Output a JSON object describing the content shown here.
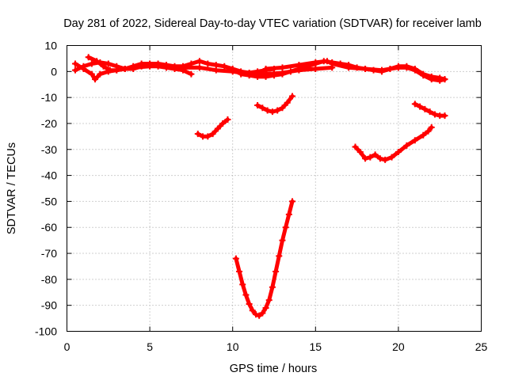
{
  "chart_data": {
    "type": "scatter",
    "title": "Day 281 of 2022, Sidereal Day-to-day VTEC variation (SDTVAR) for receiver lamb",
    "xlabel": "GPS time / hours",
    "ylabel": "SDTVAR / TECUs",
    "xlim": [
      0,
      25
    ],
    "ylim": [
      -100,
      10
    ],
    "xticks": [
      0,
      5,
      10,
      15,
      20,
      25
    ],
    "yticks": [
      10,
      0,
      -10,
      -20,
      -30,
      -40,
      -50,
      -60,
      -70,
      -80,
      -90,
      -100
    ],
    "xtick_labels": [
      "0",
      "5",
      "10",
      "15",
      "20",
      "25"
    ],
    "ytick_labels": [
      "10",
      "0",
      "-10",
      "-20",
      "-30",
      "-40",
      "-50",
      "-60",
      "-70",
      "-80",
      "-90",
      "-100"
    ],
    "grid": true,
    "legend": "none",
    "marker": "+",
    "color": "#ff0000",
    "series": [
      {
        "name": "trace-1",
        "points": [
          [
            1.3,
            5.5
          ],
          [
            1.8,
            4
          ],
          [
            2.2,
            2
          ],
          [
            2.6,
            0.5
          ],
          [
            3.0,
            0.5
          ],
          [
            3.5,
            1
          ],
          [
            4.0,
            2
          ],
          [
            4.5,
            3
          ],
          [
            5.0,
            3
          ],
          [
            5.5,
            2
          ],
          [
            6.0,
            1.5
          ],
          [
            6.5,
            1
          ],
          [
            7.0,
            0.5
          ],
          [
            7.5,
            -1
          ]
        ]
      },
      {
        "name": "trace-2",
        "points": [
          [
            0.5,
            0.5
          ],
          [
            1.0,
            2
          ],
          [
            1.5,
            3
          ],
          [
            2.0,
            3.5
          ],
          [
            2.5,
            3
          ],
          [
            3.0,
            2
          ],
          [
            3.5,
            1
          ],
          [
            4.0,
            1
          ],
          [
            4.5,
            2
          ],
          [
            5.0,
            3
          ],
          [
            5.5,
            3
          ],
          [
            6.0,
            2.5
          ],
          [
            6.5,
            2
          ],
          [
            7.0,
            2
          ],
          [
            7.5,
            3
          ],
          [
            8.0,
            4
          ],
          [
            8.5,
            3
          ],
          [
            9.0,
            2.5
          ],
          [
            9.5,
            2
          ],
          [
            10.0,
            1
          ],
          [
            10.5,
            0
          ],
          [
            11.0,
            -0.5
          ],
          [
            11.5,
            0
          ],
          [
            12.0,
            0.5
          ],
          [
            12.5,
            1
          ]
        ]
      },
      {
        "name": "trace-3",
        "points": [
          [
            0.5,
            3
          ],
          [
            1.0,
            1
          ],
          [
            1.5,
            -1
          ],
          [
            1.7,
            -3
          ],
          [
            2.0,
            -1
          ],
          [
            2.5,
            0
          ],
          [
            3.0,
            0.5
          ],
          [
            3.5,
            1
          ],
          [
            4.0,
            1.5
          ],
          [
            5.0,
            2
          ],
          [
            6.0,
            2
          ],
          [
            7.0,
            1.5
          ],
          [
            8.0,
            1.5
          ],
          [
            9.0,
            0.5
          ],
          [
            10.0,
            0
          ],
          [
            11.0,
            -1
          ],
          [
            12.0,
            -1
          ],
          [
            13.0,
            -0.5
          ],
          [
            14.0,
            0.5
          ],
          [
            15.0,
            1
          ],
          [
            16.0,
            1.5
          ]
        ]
      },
      {
        "name": "trace-4",
        "points": [
          [
            10.5,
            -1
          ],
          [
            11.0,
            -1.5
          ],
          [
            11.5,
            -2
          ],
          [
            12.0,
            -2
          ],
          [
            12.5,
            -1.5
          ],
          [
            13.0,
            -1
          ],
          [
            13.5,
            0
          ],
          [
            14.0,
            1
          ],
          [
            14.5,
            2
          ],
          [
            15.0,
            3
          ],
          [
            15.5,
            4
          ],
          [
            16.0,
            3.5
          ],
          [
            16.5,
            3
          ],
          [
            17.0,
            2.5
          ],
          [
            17.5,
            1.5
          ],
          [
            18.0,
            1
          ],
          [
            18.5,
            0.5
          ],
          [
            19.0,
            0
          ],
          [
            19.5,
            1
          ],
          [
            20.0,
            2
          ],
          [
            20.5,
            2
          ],
          [
            21.0,
            1
          ],
          [
            21.5,
            -1
          ],
          [
            22.0,
            -2
          ],
          [
            22.5,
            -2.5
          ],
          [
            22.8,
            -3
          ]
        ]
      },
      {
        "name": "trace-5",
        "points": [
          [
            12.0,
            1
          ],
          [
            13.0,
            1.5
          ],
          [
            14.0,
            2.5
          ],
          [
            15.0,
            3.5
          ],
          [
            15.7,
            4
          ],
          [
            16.0,
            3
          ],
          [
            17.0,
            1.5
          ],
          [
            18.0,
            1
          ],
          [
            19.0,
            0.5
          ],
          [
            19.5,
            1
          ],
          [
            20.0,
            1.5
          ],
          [
            20.5,
            1.5
          ],
          [
            21.0,
            0.5
          ],
          [
            21.5,
            -1.5
          ],
          [
            22.0,
            -3
          ],
          [
            22.5,
            -3.5
          ],
          [
            22.8,
            -3
          ]
        ]
      },
      {
        "name": "trace-6",
        "points": [
          [
            7.9,
            -24
          ],
          [
            8.2,
            -25
          ],
          [
            8.5,
            -25
          ],
          [
            8.8,
            -24
          ],
          [
            9.1,
            -22
          ],
          [
            9.4,
            -20
          ],
          [
            9.7,
            -18.5
          ]
        ]
      },
      {
        "name": "trace-7",
        "points": [
          [
            11.5,
            -13
          ],
          [
            11.8,
            -14
          ],
          [
            12.1,
            -15
          ],
          [
            12.4,
            -15.5
          ],
          [
            12.7,
            -15
          ],
          [
            13.0,
            -14
          ],
          [
            13.3,
            -12
          ],
          [
            13.6,
            -9.5
          ]
        ]
      },
      {
        "name": "trace-8",
        "points": [
          [
            17.4,
            -29
          ],
          [
            17.7,
            -31
          ],
          [
            18.0,
            -33.5
          ],
          [
            18.3,
            -33
          ],
          [
            18.6,
            -32
          ],
          [
            18.9,
            -33.5
          ],
          [
            19.2,
            -34
          ],
          [
            19.6,
            -33
          ],
          [
            20.0,
            -31
          ],
          [
            20.5,
            -28.5
          ],
          [
            21.0,
            -26.5
          ],
          [
            21.5,
            -24.5
          ],
          [
            21.8,
            -23
          ],
          [
            22.0,
            -21.5
          ]
        ]
      },
      {
        "name": "trace-9",
        "points": [
          [
            21.0,
            -12.5
          ],
          [
            21.3,
            -13.5
          ],
          [
            21.6,
            -14.5
          ],
          [
            21.9,
            -15.5
          ],
          [
            22.2,
            -16.5
          ],
          [
            22.5,
            -17
          ],
          [
            22.8,
            -17
          ]
        ]
      },
      {
        "name": "trace-10",
        "points": [
          [
            10.2,
            -72
          ],
          [
            10.4,
            -77
          ],
          [
            10.6,
            -82
          ],
          [
            10.8,
            -86
          ],
          [
            11.0,
            -89.5
          ],
          [
            11.2,
            -92
          ],
          [
            11.4,
            -93.5
          ],
          [
            11.6,
            -94
          ],
          [
            11.8,
            -93
          ],
          [
            12.0,
            -91
          ],
          [
            12.2,
            -88
          ],
          [
            12.4,
            -83
          ],
          [
            12.6,
            -77
          ],
          [
            12.8,
            -71
          ],
          [
            13.0,
            -65
          ],
          [
            13.2,
            -60
          ],
          [
            13.4,
            -55
          ],
          [
            13.6,
            -50
          ]
        ]
      }
    ]
  }
}
